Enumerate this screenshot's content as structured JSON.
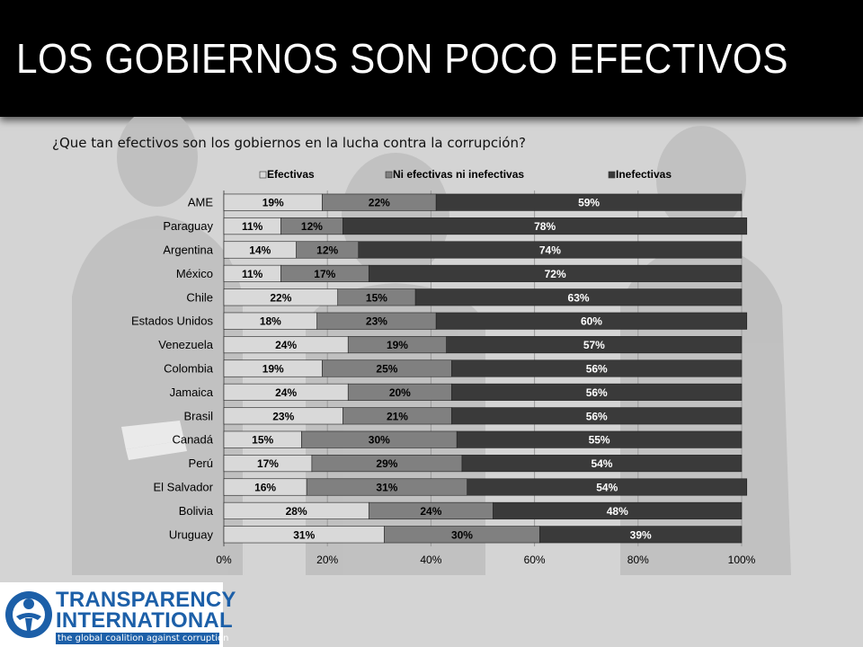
{
  "header": {
    "title": "LOS GOBIERNOS SON POCO EFECTIVOS"
  },
  "chart_data": {
    "type": "bar",
    "orientation": "horizontal",
    "stacked": "percent",
    "title": "¿Que tan efectivos son los gobiernos en la lucha contra la corrupción?",
    "categories": [
      "AME",
      "Paraguay",
      "Argentina",
      "México",
      "Chile",
      "Estados Unidos",
      "Venezuela",
      "Colombia",
      "Jamaica",
      "Brasil",
      "Canadá",
      "Perú",
      "El Salvador",
      "Bolivia",
      "Uruguay"
    ],
    "series": [
      {
        "name": "Efectivas",
        "color": "#d9d9d9",
        "label_color": "#000000",
        "values": [
          19,
          11,
          14,
          11,
          22,
          18,
          24,
          19,
          24,
          23,
          15,
          17,
          16,
          28,
          31
        ]
      },
      {
        "name": "Ni efectivas ni inefectivas",
        "color": "#808080",
        "label_color": "#000000",
        "values": [
          22,
          12,
          12,
          17,
          15,
          23,
          19,
          25,
          20,
          21,
          30,
          29,
          31,
          24,
          30
        ]
      },
      {
        "name": "Inefectivas",
        "color": "#3a3a3a",
        "label_color": "#ffffff",
        "values": [
          59,
          78,
          74,
          72,
          63,
          60,
          57,
          56,
          56,
          56,
          55,
          54,
          54,
          48,
          39
        ]
      }
    ],
    "xlim": [
      0,
      100
    ],
    "xticks": [
      "0%",
      "20%",
      "40%",
      "60%",
      "80%",
      "100%"
    ],
    "legend_position": "top",
    "grid": true
  },
  "logo": {
    "line1": "TRANSPARENCY",
    "line2": "INTERNATIONAL",
    "tagline": "the global coalition against corruption",
    "icon": "globe-figure-icon",
    "color": "#1c5fa8"
  }
}
